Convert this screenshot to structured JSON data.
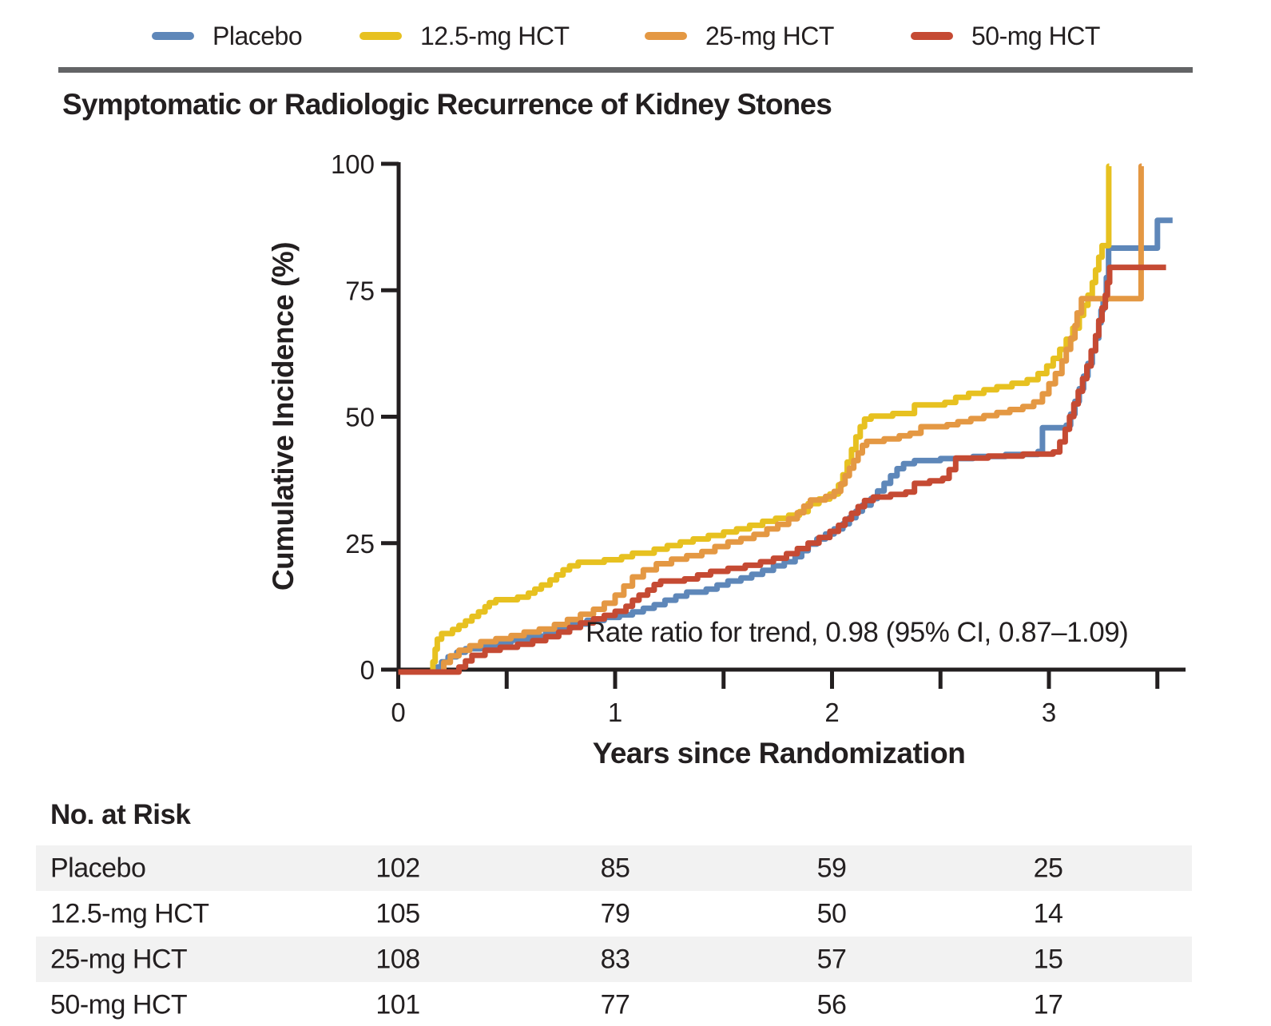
{
  "title": "Symptomatic or Radiologic Recurrence of Kidney Stones",
  "chart_data": {
    "type": "line",
    "subtype": "step-cumulative-incidence",
    "title": "Symptomatic or Radiologic Recurrence of Kidney Stones",
    "xlabel": "Years since Randomization",
    "ylabel": "Cumulative Incidence (%)",
    "xlim": [
      0,
      3.63
    ],
    "ylim": [
      0,
      100
    ],
    "xticks_labeled": [
      0,
      1,
      2,
      3
    ],
    "xticks_minor": [
      0.5,
      1.5,
      2.5,
      3.5
    ],
    "yticks": [
      0,
      25,
      50,
      75,
      100
    ],
    "grid": false,
    "legend_position": "top",
    "axis_color": "#231f20",
    "annotation": "Rate ratio for trend, 0.98 (95% CI, 0.87–1.09)",
    "series": [
      {
        "name": "Placebo",
        "color": "#5e87b9",
        "end": 3.57,
        "points": [
          [
            0,
            0
          ],
          [
            0.18,
            1
          ],
          [
            0.2,
            2
          ],
          [
            0.23,
            3
          ],
          [
            0.27,
            3.9
          ],
          [
            0.31,
            4.6
          ],
          [
            0.38,
            5.3
          ],
          [
            0.45,
            5.8
          ],
          [
            0.52,
            6.3
          ],
          [
            0.6,
            7.1
          ],
          [
            0.68,
            7.9
          ],
          [
            0.74,
            8.7
          ],
          [
            0.8,
            9.5
          ],
          [
            0.87,
            10.2
          ],
          [
            0.95,
            10.8
          ],
          [
            1.02,
            11.3
          ],
          [
            1.08,
            11.9
          ],
          [
            1.13,
            12.6
          ],
          [
            1.18,
            13.3
          ],
          [
            1.23,
            14.2
          ],
          [
            1.28,
            15.0
          ],
          [
            1.33,
            15.8
          ],
          [
            1.42,
            16.4
          ],
          [
            1.47,
            17.2
          ],
          [
            1.52,
            18.0
          ],
          [
            1.58,
            18.6
          ],
          [
            1.63,
            19.3
          ],
          [
            1.68,
            20.1
          ],
          [
            1.73,
            21.0
          ],
          [
            1.78,
            21.8
          ],
          [
            1.83,
            22.8
          ],
          [
            1.86,
            24.0
          ],
          [
            1.89,
            25.3
          ],
          [
            1.93,
            26.3
          ],
          [
            1.97,
            27.3
          ],
          [
            2.01,
            28.3
          ],
          [
            2.05,
            29.3
          ],
          [
            2.08,
            30.5
          ],
          [
            2.11,
            31.8
          ],
          [
            2.14,
            33.0
          ],
          [
            2.18,
            34.3
          ],
          [
            2.21,
            35.8
          ],
          [
            2.24,
            37.3
          ],
          [
            2.27,
            38.8
          ],
          [
            2.3,
            40.2
          ],
          [
            2.33,
            41.2
          ],
          [
            2.38,
            41.8
          ],
          [
            2.5,
            42.2
          ],
          [
            2.65,
            42.6
          ],
          [
            2.8,
            43.0
          ],
          [
            2.95,
            43.6
          ],
          [
            2.97,
            48.3
          ],
          [
            3.08,
            48.8
          ],
          [
            3.1,
            51.0
          ],
          [
            3.12,
            53.5
          ],
          [
            3.14,
            56.0
          ],
          [
            3.16,
            58.5
          ],
          [
            3.18,
            61.0
          ],
          [
            3.2,
            63.5
          ],
          [
            3.215,
            66.0
          ],
          [
            3.23,
            69.0
          ],
          [
            3.24,
            71.5
          ],
          [
            3.25,
            73.5
          ],
          [
            3.265,
            78.0
          ],
          [
            3.275,
            83.8
          ],
          [
            3.5,
            89.3
          ]
        ]
      },
      {
        "name": "12.5-mg HCT",
        "color": "#e7c120",
        "end": 3.278,
        "points": [
          [
            0,
            0
          ],
          [
            0.16,
            2
          ],
          [
            0.17,
            4.5
          ],
          [
            0.18,
            6.5
          ],
          [
            0.2,
            7.6
          ],
          [
            0.25,
            8.4
          ],
          [
            0.28,
            9.2
          ],
          [
            0.31,
            10.1
          ],
          [
            0.34,
            11.0
          ],
          [
            0.37,
            11.9
          ],
          [
            0.4,
            12.9
          ],
          [
            0.42,
            13.7
          ],
          [
            0.45,
            14.3
          ],
          [
            0.55,
            14.8
          ],
          [
            0.6,
            15.6
          ],
          [
            0.63,
            16.4
          ],
          [
            0.66,
            17.2
          ],
          [
            0.7,
            18.2
          ],
          [
            0.73,
            19.2
          ],
          [
            0.76,
            20.2
          ],
          [
            0.79,
            21.0
          ],
          [
            0.83,
            21.7
          ],
          [
            0.95,
            22.2
          ],
          [
            1.03,
            22.8
          ],
          [
            1.08,
            23.5
          ],
          [
            1.18,
            24.3
          ],
          [
            1.24,
            25.0
          ],
          [
            1.3,
            25.7
          ],
          [
            1.36,
            26.3
          ],
          [
            1.43,
            27.0
          ],
          [
            1.5,
            27.7
          ],
          [
            1.56,
            28.3
          ],
          [
            1.62,
            29.0
          ],
          [
            1.68,
            29.8
          ],
          [
            1.74,
            30.4
          ],
          [
            1.8,
            31.0
          ],
          [
            1.85,
            31.7
          ],
          [
            1.89,
            33.3
          ],
          [
            1.94,
            34.2
          ],
          [
            1.99,
            35.2
          ],
          [
            2.03,
            37.0
          ],
          [
            2.05,
            39.0
          ],
          [
            2.07,
            41.5
          ],
          [
            2.09,
            44.0
          ],
          [
            2.11,
            46.5
          ],
          [
            2.13,
            48.5
          ],
          [
            2.15,
            50.0
          ],
          [
            2.18,
            50.6
          ],
          [
            2.28,
            51.1
          ],
          [
            2.38,
            52.8
          ],
          [
            2.52,
            53.3
          ],
          [
            2.57,
            54.3
          ],
          [
            2.63,
            55.1
          ],
          [
            2.7,
            55.8
          ],
          [
            2.76,
            56.4
          ],
          [
            2.83,
            57.1
          ],
          [
            2.9,
            57.8
          ],
          [
            2.95,
            59.0
          ],
          [
            2.99,
            60.5
          ],
          [
            3.02,
            62.0
          ],
          [
            3.05,
            63.8
          ],
          [
            3.08,
            65.8
          ],
          [
            3.11,
            68.0
          ],
          [
            3.14,
            70.5
          ],
          [
            3.16,
            72.5
          ],
          [
            3.18,
            74.5
          ],
          [
            3.2,
            77.0
          ],
          [
            3.215,
            79.5
          ],
          [
            3.23,
            82.0
          ],
          [
            3.245,
            84.3
          ],
          [
            3.276,
            100
          ]
        ]
      },
      {
        "name": "25-mg HCT",
        "color": "#e49843",
        "end": 3.428,
        "points": [
          [
            0,
            0
          ],
          [
            0.21,
            1.9
          ],
          [
            0.24,
            3.2
          ],
          [
            0.28,
            4.3
          ],
          [
            0.33,
            5.2
          ],
          [
            0.38,
            6.0
          ],
          [
            0.45,
            6.6
          ],
          [
            0.52,
            7.2
          ],
          [
            0.58,
            7.9
          ],
          [
            0.65,
            8.5
          ],
          [
            0.72,
            9.4
          ],
          [
            0.78,
            10.4
          ],
          [
            0.84,
            11.4
          ],
          [
            0.9,
            12.4
          ],
          [
            0.95,
            13.6
          ],
          [
            1.0,
            15.2
          ],
          [
            1.04,
            17.0
          ],
          [
            1.08,
            18.8
          ],
          [
            1.13,
            20.2
          ],
          [
            1.19,
            21.4
          ],
          [
            1.26,
            22.3
          ],
          [
            1.33,
            23.0
          ],
          [
            1.4,
            23.8
          ],
          [
            1.46,
            24.8
          ],
          [
            1.52,
            25.7
          ],
          [
            1.58,
            26.4
          ],
          [
            1.64,
            27.2
          ],
          [
            1.7,
            28.3
          ],
          [
            1.75,
            29.2
          ],
          [
            1.8,
            30.3
          ],
          [
            1.84,
            31.5
          ],
          [
            1.87,
            32.8
          ],
          [
            1.9,
            34.0
          ],
          [
            1.97,
            34.7
          ],
          [
            2.01,
            35.7
          ],
          [
            2.04,
            37.2
          ],
          [
            2.06,
            38.8
          ],
          [
            2.08,
            40.3
          ],
          [
            2.1,
            41.8
          ],
          [
            2.12,
            43.3
          ],
          [
            2.14,
            44.8
          ],
          [
            2.16,
            45.6
          ],
          [
            2.24,
            46.1
          ],
          [
            2.31,
            46.7
          ],
          [
            2.36,
            47.2
          ],
          [
            2.41,
            48.5
          ],
          [
            2.53,
            48.9
          ],
          [
            2.58,
            49.5
          ],
          [
            2.64,
            50.1
          ],
          [
            2.7,
            50.7
          ],
          [
            2.76,
            51.3
          ],
          [
            2.82,
            51.9
          ],
          [
            2.88,
            52.5
          ],
          [
            2.93,
            53.4
          ],
          [
            2.97,
            55.0
          ],
          [
            3.0,
            57.0
          ],
          [
            3.03,
            59.0
          ],
          [
            3.06,
            61.5
          ],
          [
            3.08,
            63.8
          ],
          [
            3.1,
            66.0
          ],
          [
            3.12,
            68.5
          ],
          [
            3.13,
            71.0
          ],
          [
            3.15,
            73.8
          ],
          [
            3.42,
            73.8
          ],
          [
            3.425,
            100
          ]
        ]
      },
      {
        "name": "50-mg HCT",
        "color": "#c54a33",
        "end": 3.54,
        "points": [
          [
            0,
            0
          ],
          [
            0.28,
            1.0
          ],
          [
            0.31,
            2.2
          ],
          [
            0.34,
            3.3
          ],
          [
            0.4,
            4.3
          ],
          [
            0.47,
            4.9
          ],
          [
            0.55,
            5.5
          ],
          [
            0.62,
            6.2
          ],
          [
            0.68,
            7.0
          ],
          [
            0.74,
            7.9
          ],
          [
            0.79,
            8.8
          ],
          [
            0.84,
            9.7
          ],
          [
            0.9,
            10.5
          ],
          [
            0.95,
            11.2
          ],
          [
            1.0,
            12.0
          ],
          [
            1.05,
            13.0
          ],
          [
            1.08,
            14.2
          ],
          [
            1.11,
            15.2
          ],
          [
            1.15,
            16.2
          ],
          [
            1.18,
            17.3
          ],
          [
            1.21,
            18.0
          ],
          [
            1.32,
            18.4
          ],
          [
            1.38,
            19.2
          ],
          [
            1.44,
            19.9
          ],
          [
            1.52,
            20.5
          ],
          [
            1.6,
            21.1
          ],
          [
            1.67,
            21.8
          ],
          [
            1.73,
            22.5
          ],
          [
            1.79,
            23.4
          ],
          [
            1.84,
            24.4
          ],
          [
            1.89,
            25.5
          ],
          [
            1.94,
            26.6
          ],
          [
            1.99,
            27.8
          ],
          [
            2.03,
            29.0
          ],
          [
            2.06,
            30.2
          ],
          [
            2.09,
            31.4
          ],
          [
            2.12,
            32.7
          ],
          [
            2.15,
            33.9
          ],
          [
            2.19,
            34.6
          ],
          [
            2.27,
            35.1
          ],
          [
            2.34,
            35.6
          ],
          [
            2.38,
            37.3
          ],
          [
            2.45,
            37.8
          ],
          [
            2.51,
            38.3
          ],
          [
            2.54,
            40.0
          ],
          [
            2.57,
            42.3
          ],
          [
            2.72,
            42.7
          ],
          [
            2.88,
            43.1
          ],
          [
            3.02,
            43.5
          ],
          [
            3.05,
            45.5
          ],
          [
            3.075,
            48.0
          ],
          [
            3.095,
            50.5
          ],
          [
            3.115,
            53.0
          ],
          [
            3.135,
            55.5
          ],
          [
            3.155,
            58.0
          ],
          [
            3.175,
            60.5
          ],
          [
            3.195,
            63.5
          ],
          [
            3.215,
            66.5
          ],
          [
            3.23,
            69.5
          ],
          [
            3.245,
            72.0
          ],
          [
            3.26,
            74.5
          ],
          [
            3.27,
            77.0
          ],
          [
            3.28,
            80.0
          ]
        ]
      }
    ]
  },
  "at_risk": {
    "heading": "No. at Risk",
    "rows": [
      {
        "label": "Placebo",
        "values": [
          "102",
          "85",
          "59",
          "25"
        ]
      },
      {
        "label": "12.5-mg HCT",
        "values": [
          "105",
          "79",
          "50",
          "14"
        ]
      },
      {
        "label": "25-mg HCT",
        "values": [
          "108",
          "83",
          "57",
          "15"
        ]
      },
      {
        "label": "50-mg HCT",
        "values": [
          "101",
          "77",
          "56",
          "17"
        ]
      }
    ]
  }
}
